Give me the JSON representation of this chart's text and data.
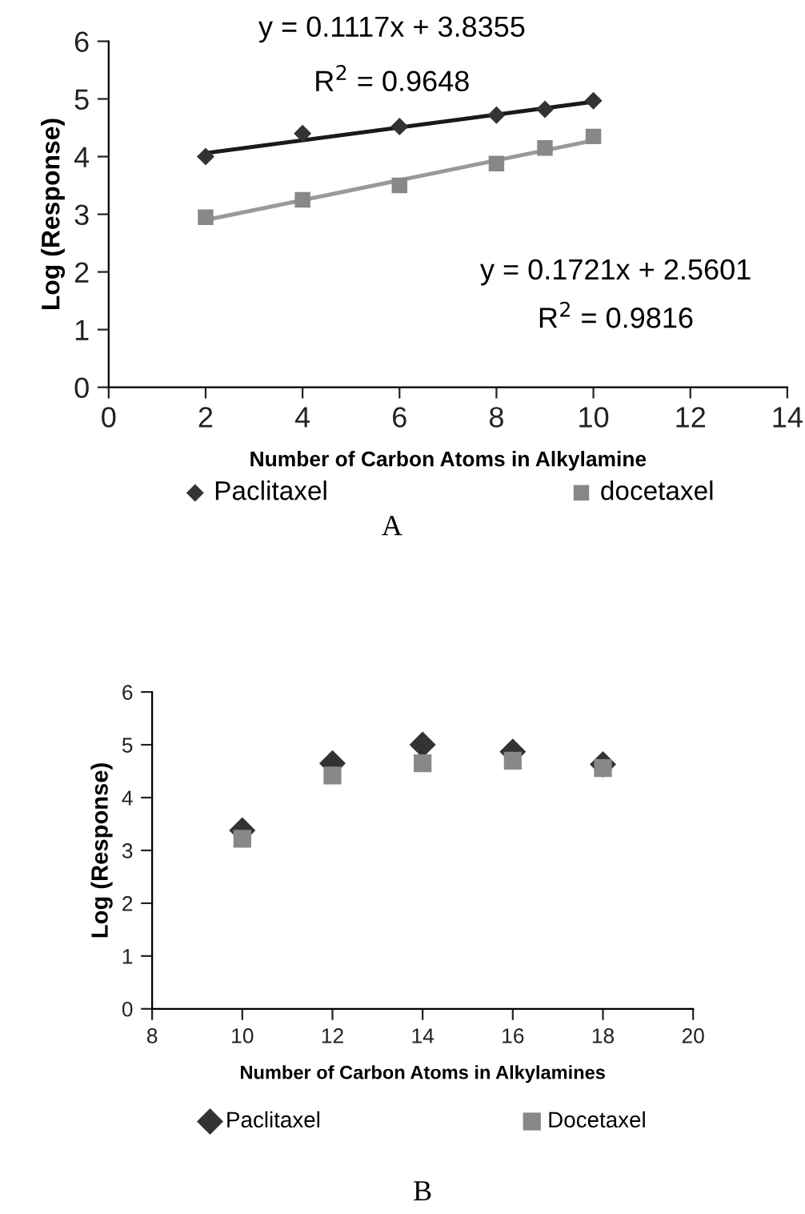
{
  "chart_data": [
    {
      "type": "scatter",
      "xlabel": "Number of Carbon Atoms in Alkylamine",
      "ylabel": "Log (Response)",
      "xlim": [
        0,
        14
      ],
      "xticks": [
        0,
        2,
        4,
        6,
        8,
        10,
        12,
        14
      ],
      "ylim": [
        0,
        6
      ],
      "yticks": [
        0,
        1,
        2,
        3,
        4,
        5,
        6
      ],
      "grid": false,
      "legend": "bottom",
      "series": [
        {
          "name": "Paclitaxel",
          "color": "#333333",
          "marker": "diamond",
          "x": [
            2,
            4,
            6,
            8,
            9,
            10
          ],
          "values": [
            4.0,
            4.4,
            4.52,
            4.72,
            4.82,
            4.97
          ]
        },
        {
          "name": "docetaxel",
          "color": "#888888",
          "marker": "square",
          "x": [
            2,
            4,
            6,
            8,
            9,
            10
          ],
          "values": [
            2.95,
            3.25,
            3.5,
            3.88,
            4.15,
            4.35
          ]
        },
        {
          "type": "line",
          "color": "#1a1a1a",
          "x": [
            2,
            10
          ],
          "values": [
            4.06,
            4.95
          ]
        },
        {
          "type": "line",
          "color": "#999999",
          "x": [
            2,
            10
          ],
          "values": [
            2.9,
            4.28
          ]
        }
      ],
      "annotations": [
        "y = 0.1117x + 3.8355",
        "R$^{2}$ = 0.9648",
        "y = 0.1721x + 2.5601",
        "R$^{2}$ = 0.9816",
        "A"
      ]
    },
    {
      "type": "scatter",
      "xlabel": "Number of Carbon Atoms in Alkylamines",
      "ylabel": "Log (Response)",
      "xlim": [
        8,
        20
      ],
      "xticks": [
        8,
        10,
        12,
        14,
        16,
        18,
        20
      ],
      "ylim": [
        0,
        6
      ],
      "yticks": [
        0,
        1,
        2,
        3,
        4,
        5,
        6
      ],
      "grid": false,
      "legend": "bottom",
      "series": [
        {
          "name": "Paclitaxel",
          "color": "#333333",
          "marker": "diamond",
          "x": [
            10,
            12,
            14,
            16,
            18
          ],
          "values": [
            3.38,
            4.65,
            5.0,
            4.87,
            4.63
          ]
        },
        {
          "name": "Docetaxel",
          "color": "#888888",
          "marker": "square",
          "x": [
            10,
            12,
            14,
            16,
            18
          ],
          "values": [
            3.22,
            4.42,
            4.65,
            4.7,
            4.56
          ]
        }
      ],
      "annotations": [
        "B"
      ]
    }
  ]
}
